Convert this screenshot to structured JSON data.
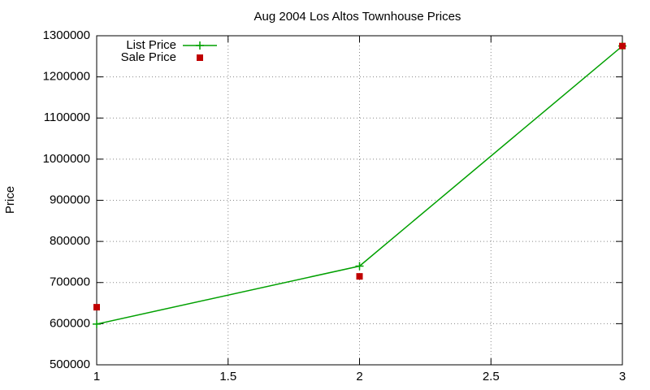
{
  "chart_data": {
    "type": "line",
    "title": "Aug 2004 Los Altos Townhouse Prices",
    "ylabel": "Price",
    "x": [
      1,
      2,
      3
    ],
    "series": [
      {
        "name": "List Price",
        "color": "#00a000",
        "style": "linespoints",
        "values": [
          599000,
          740000,
          1275000
        ]
      },
      {
        "name": "Sale Price",
        "color": "#c00000",
        "style": "points",
        "values": [
          640000,
          715000,
          1275000
        ]
      }
    ],
    "xlim": [
      1,
      3
    ],
    "xticks": [
      1,
      1.5,
      2,
      2.5,
      3
    ],
    "ylim": [
      500000,
      1300000
    ],
    "yticks": [
      500000,
      600000,
      700000,
      800000,
      900000,
      1000000,
      1100000,
      1200000,
      1300000
    ],
    "grid": true,
    "legend": "top-left"
  }
}
